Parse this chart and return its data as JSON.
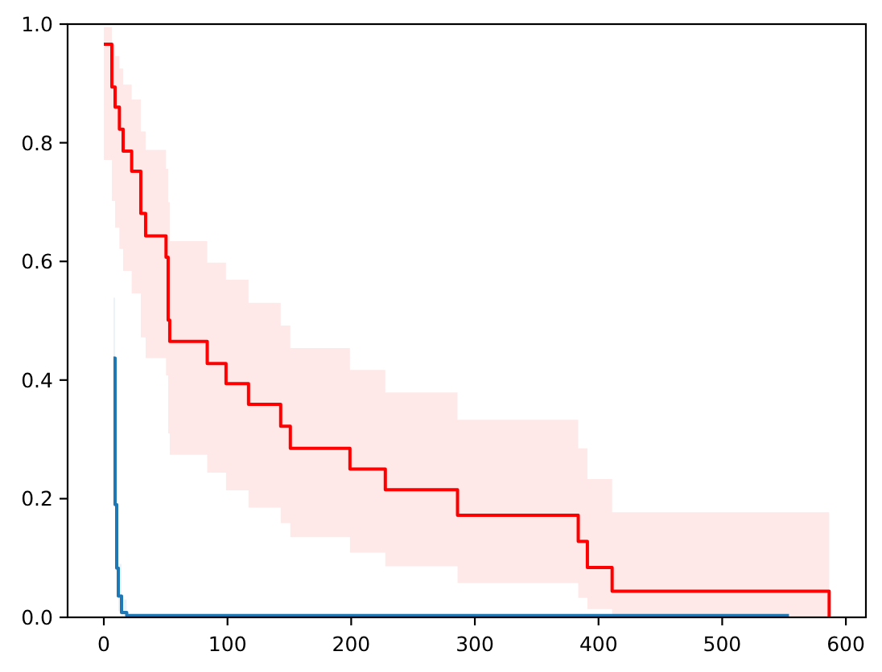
{
  "chart_data": {
    "type": "step",
    "xlim": [
      -29.3,
      616.2
    ],
    "ylim": [
      0,
      1
    ],
    "xticks": [
      0,
      100,
      200,
      300,
      400,
      500,
      600
    ],
    "yticks": [
      {
        "value": 0,
        "label": "0.0"
      },
      {
        "value": 0.2,
        "label": "0.2"
      },
      {
        "value": 0.4,
        "label": "0.4"
      },
      {
        "value": 0.6,
        "label": "0.6"
      },
      {
        "value": 0.8,
        "label": "0.8"
      },
      {
        "value": 1,
        "label": "1.0"
      }
    ],
    "series": [
      {
        "color": "#ff0000",
        "x": [
          0,
          6.5,
          9.1,
          12.6,
          15.6,
          22.5,
          29.9,
          33.8,
          50.3,
          52,
          53.3,
          83.6,
          98.8,
          117,
          143,
          150.8,
          199,
          227.6,
          286,
          383.6,
          391,
          411,
          586.5
        ],
        "values": [
          0.966,
          0.894,
          0.86,
          0.823,
          0.786,
          0.752,
          0.681,
          0.643,
          0.607,
          0.501,
          0.465,
          0.428,
          0.394,
          0.359,
          0.322,
          0.285,
          0.25,
          0.215,
          0.172,
          0.128,
          0.084,
          0.044,
          0
        ],
        "lower": [
          0.771,
          0.702,
          0.657,
          0.621,
          0.584,
          0.546,
          0.472,
          0.437,
          0.408,
          0.31,
          0.274,
          0.244,
          0.214,
          0.185,
          0.159,
          0.135,
          0.109,
          0.086,
          0.058,
          0.033,
          0.014,
          0,
          0
        ],
        "upper": [
          0.995,
          0.965,
          0.946,
          0.925,
          0.898,
          0.873,
          0.819,
          0.788,
          0.756,
          0.7,
          0.634,
          0.598,
          0.569,
          0.53,
          0.492,
          0.454,
          0.417,
          0.379,
          0.333,
          0.285,
          0.233,
          0.177,
          0.177
        ]
      },
      {
        "color": "#1f77b4",
        "x": [
          7.8,
          9.1,
          10.4,
          11.7,
          14.3,
          18.5,
          554
        ],
        "values": [
          0.437,
          0.19,
          0.083,
          0.036,
          0.008,
          0.003,
          0.003
        ],
        "lower": [
          0.34,
          0.12,
          0.04,
          0.01,
          0,
          0,
          null
        ],
        "upper": [
          0.539,
          0.28,
          0.15,
          0.09,
          0.03,
          0.03,
          null
        ]
      }
    ]
  }
}
